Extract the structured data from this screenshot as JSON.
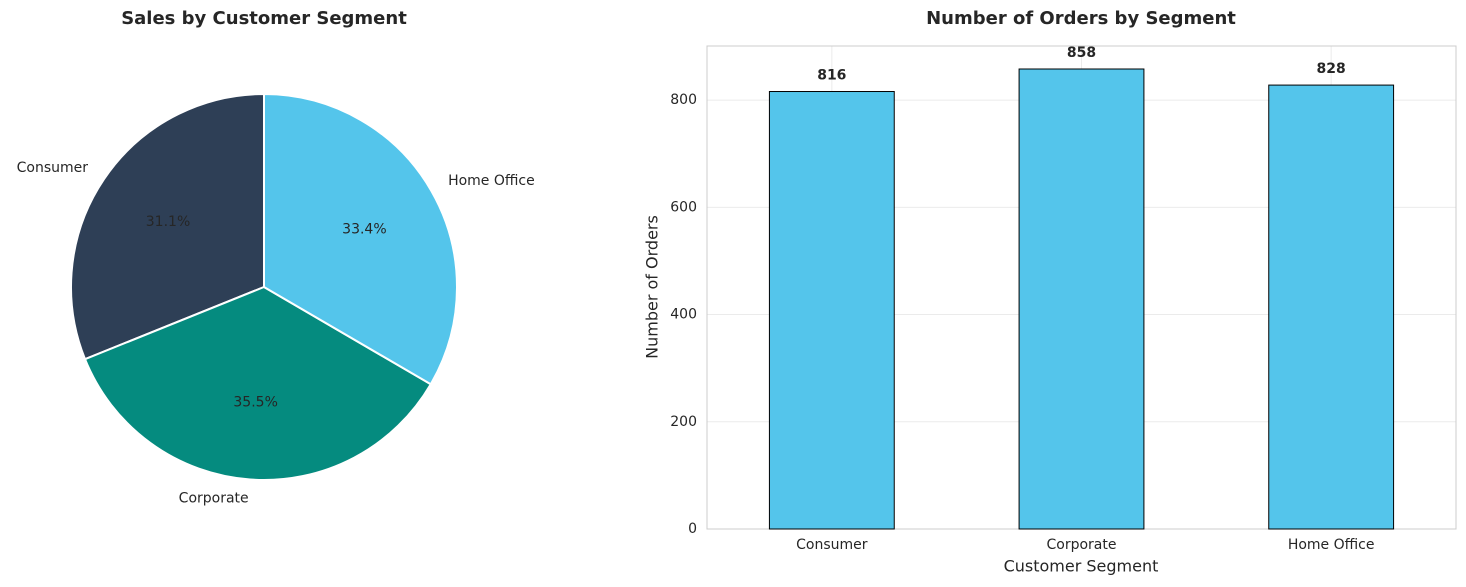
{
  "chart_data": [
    {
      "type": "pie",
      "title": "Sales by Customer Segment",
      "categories": [
        "Consumer",
        "Corporate",
        "Home Office"
      ],
      "values": [
        31.1,
        35.5,
        33.4
      ],
      "value_labels": [
        "31.1%",
        "35.5%",
        "33.4%"
      ],
      "colors": [
        "#2e3f56",
        "#058b7f",
        "#54c5eb"
      ]
    },
    {
      "type": "bar",
      "title": "Number of Orders by Segment",
      "x_label": "Customer Segment",
      "y_label": "Number of Orders",
      "categories": [
        "Consumer",
        "Corporate",
        "Home Office"
      ],
      "values": [
        816,
        858,
        828
      ],
      "color": "#54c5eb",
      "ylim": [
        0,
        900.9
      ],
      "yticks": [
        0,
        200,
        400,
        600,
        800
      ],
      "grid": true
    }
  ]
}
